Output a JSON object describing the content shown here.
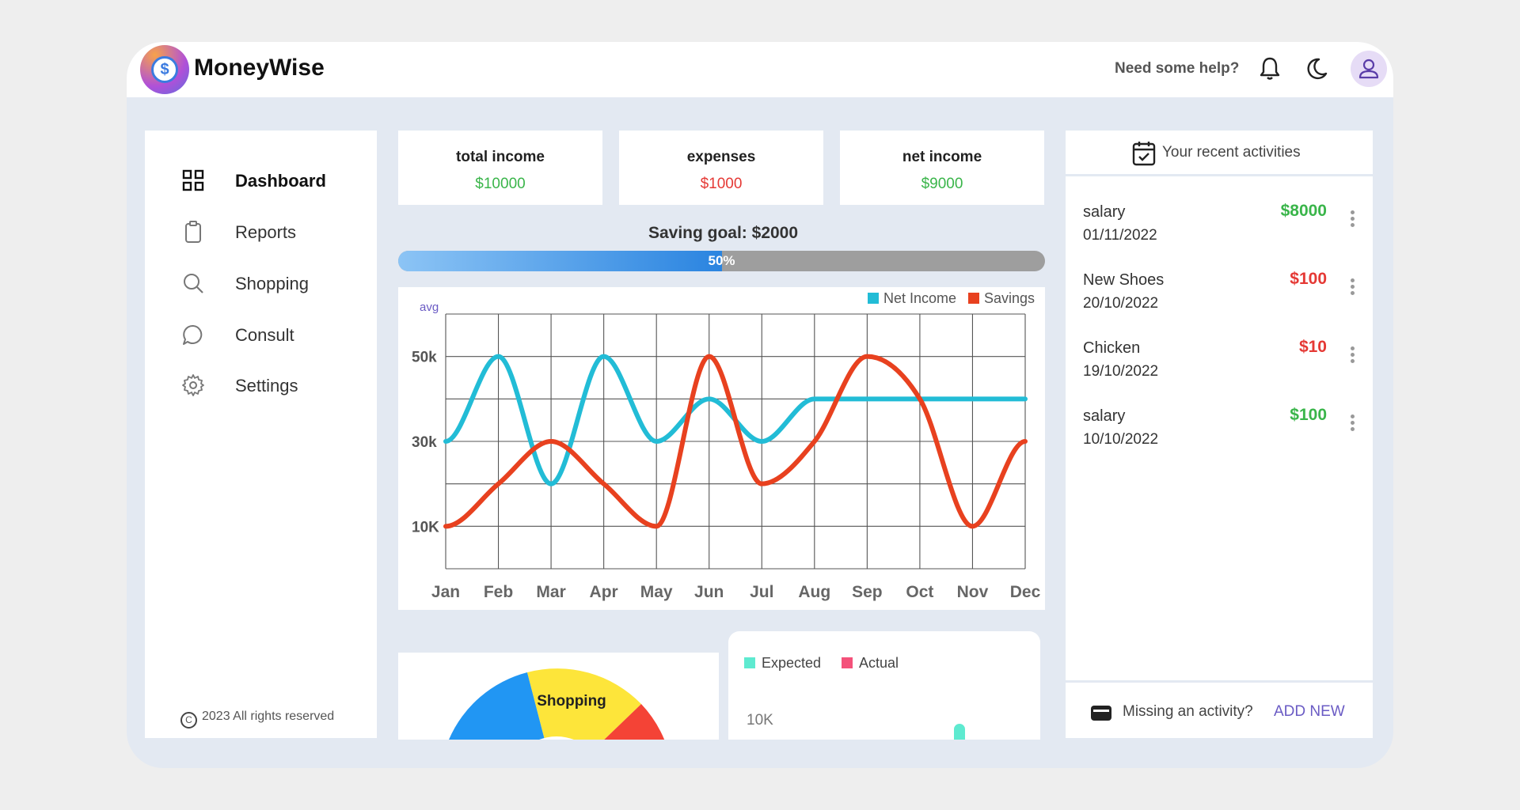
{
  "app": {
    "name": "MoneyWise",
    "logo_symbol": "$"
  },
  "header": {
    "help_text": "Need some help?",
    "icons": [
      "bell-icon",
      "moon-icon",
      "user-icon"
    ]
  },
  "sidebar": {
    "items": [
      {
        "label": "Dashboard",
        "icon": "grid-icon",
        "active": true
      },
      {
        "label": "Reports",
        "icon": "clipboard-icon"
      },
      {
        "label": "Shopping",
        "icon": "search-icon"
      },
      {
        "label": "Consult",
        "icon": "chat-icon"
      },
      {
        "label": "Settings",
        "icon": "gear-icon"
      }
    ],
    "copyright": "2023 All rights reserved",
    "copyright_symbol": "C"
  },
  "stats": [
    {
      "title": "total income",
      "value": "$10000",
      "color": "#3ab54a"
    },
    {
      "title": "expenses",
      "value": "$1000",
      "color": "#e53935"
    },
    {
      "title": "net income",
      "value": "$9000",
      "color": "#3ab54a"
    }
  ],
  "saving_goal": {
    "title": "Saving goal: $2000",
    "percent_label": "50%",
    "progress": 0.5
  },
  "chart_data": [
    {
      "type": "line",
      "title": "",
      "ylabel": "avg",
      "xlabel": "",
      "categories": [
        "Jan",
        "Feb",
        "Mar",
        "Apr",
        "May",
        "Jun",
        "Jul",
        "Aug",
        "Sep",
        "Oct",
        "Nov",
        "Dec"
      ],
      "y_ticks": [
        "50k",
        "30k",
        "10K"
      ],
      "y_tick_values": [
        50000,
        30000,
        10000
      ],
      "ylim": [
        0,
        60000
      ],
      "grid": true,
      "legend_position": "top-right",
      "series": [
        {
          "name": "Net Income",
          "color": "#22bcd6",
          "values": [
            30000,
            50000,
            20000,
            50000,
            30000,
            40000,
            30000,
            40000,
            40000,
            40000,
            40000,
            40000
          ]
        },
        {
          "name": "Savings",
          "color": "#e8411f",
          "values": [
            10000,
            20000,
            30000,
            20000,
            10000,
            50000,
            20000,
            30000,
            50000,
            40000,
            10000,
            30000
          ]
        }
      ]
    },
    {
      "type": "pie",
      "title": "",
      "labels": [
        "Shopping"
      ],
      "colors": [
        "#2196f3",
        "#fde53a",
        "#f44336"
      ]
    },
    {
      "type": "bar",
      "title": "",
      "series": [
        {
          "name": "Expected",
          "color": "#5eead0"
        },
        {
          "name": "Actual",
          "color": "#f4517a"
        }
      ],
      "y_ticks": [
        "10K"
      ]
    }
  ],
  "activities": {
    "title": "Your recent activities",
    "items": [
      {
        "name": "salary",
        "date": "01/11/2022",
        "amount": "$8000",
        "color": "#3ab54a"
      },
      {
        "name": "New Shoes",
        "date": "20/10/2022",
        "amount": "$100",
        "color": "#e53935"
      },
      {
        "name": "Chicken",
        "date": "19/10/2022",
        "amount": "$10",
        "color": "#e53935"
      },
      {
        "name": "salary",
        "date": "10/10/2022",
        "amount": "$100",
        "color": "#3ab54a"
      }
    ],
    "footer_text": "Missing an activity?",
    "footer_link": "ADD NEW"
  }
}
